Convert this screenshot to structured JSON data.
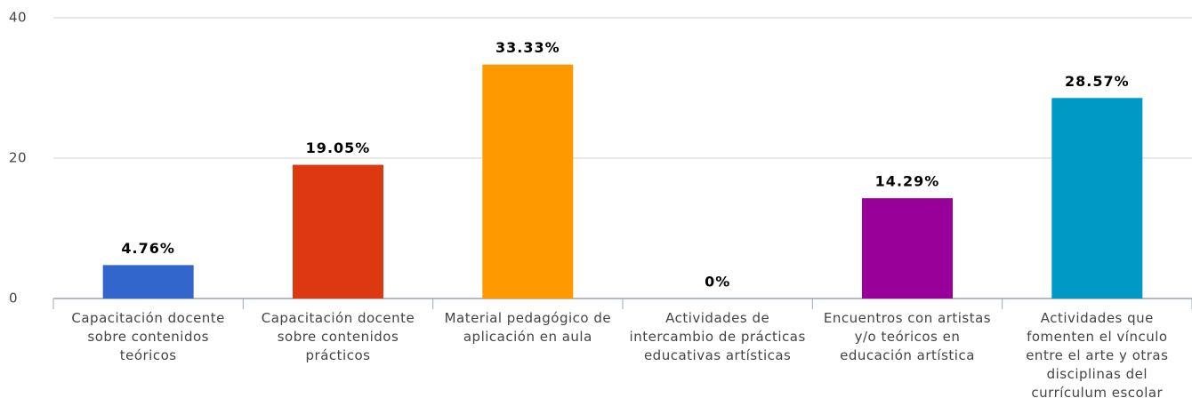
{
  "chart_data": {
    "type": "bar",
    "categories": [
      "Capacitación docente sobre contenidos teóricos",
      "Capacitación docente sobre contenidos prácticos",
      "Material pedagógico de aplicación en aula",
      "Actividades de intercambio de prácticas educativas artísticas",
      "Encuentros con artistas y/o teóricos en educación artística",
      "Actividades que fomenten el vínculo entre el arte y otras disciplinas del currículum escolar"
    ],
    "values": [
      4.76,
      19.05,
      33.33,
      0,
      14.29,
      28.57
    ],
    "value_labels": [
      "4.76%",
      "19.05%",
      "33.33%",
      "0%",
      "14.29%",
      "28.57%"
    ],
    "colors": [
      "#3366cc",
      "#dc3912",
      "#ff9900",
      "#109618",
      "#990099",
      "#0099c6"
    ],
    "ylim": [
      0,
      40
    ],
    "yticks": [
      0,
      20,
      40
    ],
    "grid": true
  }
}
